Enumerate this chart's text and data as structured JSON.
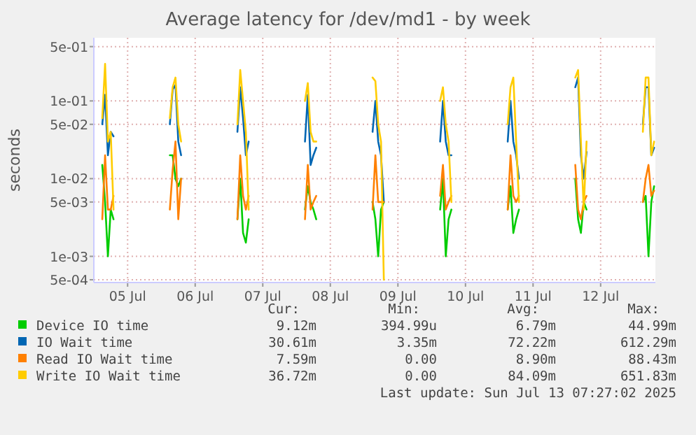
{
  "chart_data": {
    "type": "line",
    "title": "Average latency for /dev/md1 - by week",
    "ylabel": "seconds",
    "log": "y",
    "grid": true,
    "legend": "bottom",
    "xlim": [
      "2025-07-05T00:00",
      "2025-07-13T07:27"
    ],
    "xticks": [
      {
        "value": "2025-07-05T12:00",
        "label": "05 Jul"
      },
      {
        "value": "2025-07-06T12:00",
        "label": "06 Jul"
      },
      {
        "value": "2025-07-07T12:00",
        "label": "07 Jul"
      },
      {
        "value": "2025-07-08T12:00",
        "label": "08 Jul"
      },
      {
        "value": "2025-07-09T12:00",
        "label": "09 Jul"
      },
      {
        "value": "2025-07-10T12:00",
        "label": "10 Jul"
      },
      {
        "value": "2025-07-11T12:00",
        "label": "11 Jul"
      },
      {
        "value": "2025-07-12T12:00",
        "label": "12 Jul"
      }
    ],
    "ylim": [
      0.00046,
      0.65
    ],
    "yticks": [
      {
        "value": 0.0005,
        "label": "5e-04"
      },
      {
        "value": 0.001,
        "label": "1e-03"
      },
      {
        "value": 0.005,
        "label": "5e-03"
      },
      {
        "value": 0.01,
        "label": "1e-02"
      },
      {
        "value": 0.05,
        "label": "5e-02"
      },
      {
        "value": 0.1,
        "label": "1e-01"
      },
      {
        "value": 0.5,
        "label": "5e-01"
      }
    ],
    "x": [
      "2025-07-05T03:00",
      "2025-07-05T04:00",
      "2025-07-05T05:00",
      "2025-07-05T06:00",
      "2025-07-05T07:00",
      "2025-07-05T12:00",
      "2025-07-06T03:00",
      "2025-07-06T04:00",
      "2025-07-06T05:00",
      "2025-07-06T06:00",
      "2025-07-06T07:00",
      "2025-07-06T12:00",
      "2025-07-07T03:00",
      "2025-07-07T04:00",
      "2025-07-07T05:00",
      "2025-07-07T06:00",
      "2025-07-07T07:00",
      "2025-07-07T12:00",
      "2025-07-08T03:00",
      "2025-07-08T04:00",
      "2025-07-08T05:00",
      "2025-07-08T06:00",
      "2025-07-08T07:00",
      "2025-07-08T12:00",
      "2025-07-09T03:00",
      "2025-07-09T04:00",
      "2025-07-09T05:00",
      "2025-07-09T06:00",
      "2025-07-09T07:00",
      "2025-07-09T12:00",
      "2025-07-10T03:00",
      "2025-07-10T04:00",
      "2025-07-10T05:00",
      "2025-07-10T06:00",
      "2025-07-10T07:00",
      "2025-07-10T12:00",
      "2025-07-11T03:00",
      "2025-07-11T04:00",
      "2025-07-11T05:00",
      "2025-07-11T06:00",
      "2025-07-11T07:00",
      "2025-07-11T12:00",
      "2025-07-12T03:00",
      "2025-07-12T04:00",
      "2025-07-12T05:00",
      "2025-07-12T06:00",
      "2025-07-12T07:00",
      "2025-07-12T12:00",
      "2025-07-13T03:00",
      "2025-07-13T04:00",
      "2025-07-13T05:00",
      "2025-07-13T06:00",
      "2025-07-13T07:00"
    ],
    "series": [
      {
        "name": "Device IO time",
        "color": "#00cc00",
        "values": [
          0.015,
          0.005,
          0.001,
          0.004,
          0.003,
          null,
          0.02,
          0.02,
          0.01,
          0.008,
          0.01,
          null,
          0.003,
          0.01,
          0.002,
          0.0015,
          0.003,
          null,
          0.004,
          0.008,
          0.005,
          0.004,
          0.003,
          null,
          0.005,
          0.003,
          0.001,
          0.004,
          0.005,
          null,
          0.004,
          0.01,
          0.001,
          0.003,
          0.004,
          null,
          0.004,
          0.008,
          0.002,
          0.003,
          0.004,
          null,
          0.01,
          0.003,
          0.002,
          0.005,
          0.004,
          null,
          0.005,
          0.006,
          0.001,
          0.005,
          0.008
        ]
      },
      {
        "name": "IO Wait time",
        "color": "#0066b3",
        "values": [
          0.05,
          0.12,
          0.02,
          0.04,
          0.035,
          null,
          0.05,
          0.14,
          0.16,
          0.03,
          0.02,
          null,
          0.04,
          0.15,
          0.06,
          0.02,
          0.03,
          null,
          0.03,
          0.12,
          0.015,
          0.02,
          0.025,
          null,
          0.04,
          0.1,
          0.03,
          0.02,
          0.005,
          null,
          0.03,
          0.1,
          0.03,
          0.02,
          0.02,
          null,
          0.03,
          0.1,
          0.03,
          0.02,
          0.01,
          null,
          0.15,
          0.2,
          0.02,
          0.01,
          0.022,
          null,
          0.05,
          0.15,
          0.15,
          0.02,
          0.025
        ]
      },
      {
        "name": "Read IO Wait time",
        "color": "#ff8000",
        "values": [
          0.003,
          0.02,
          0.004,
          0.004,
          0.006,
          null,
          0.004,
          0.013,
          0.03,
          0.003,
          0.01,
          null,
          0.003,
          0.02,
          0.006,
          0.004,
          0.006,
          null,
          0.003,
          0.015,
          0.004,
          0.005,
          0.006,
          null,
          0.004,
          0.02,
          0.005,
          0.005,
          0.005,
          null,
          0.006,
          0.015,
          0.004,
          0.005,
          0.006,
          null,
          0.004,
          0.02,
          0.006,
          0.005,
          0.006,
          null,
          0.015,
          0.004,
          0.003,
          0.005,
          0.006,
          null,
          0.005,
          0.01,
          0.015,
          0.006,
          0.007
        ]
      },
      {
        "name": "Write IO Wait time",
        "color": "#ffcc00",
        "values": [
          0.06,
          0.3,
          0.03,
          0.04,
          0.004,
          null,
          0.06,
          0.15,
          0.2,
          0.05,
          0.03,
          null,
          0.05,
          0.25,
          0.1,
          0.04,
          0.004,
          null,
          0.1,
          0.17,
          0.04,
          0.03,
          0.03,
          null,
          0.2,
          0.18,
          0.05,
          0.03,
          0.0005,
          null,
          0.1,
          0.15,
          0.05,
          0.03,
          0.005,
          null,
          0.05,
          0.15,
          0.2,
          0.03,
          0.005,
          null,
          0.2,
          0.25,
          0.03,
          0.004,
          0.03,
          null,
          0.04,
          0.2,
          0.2,
          0.02,
          0.03
        ]
      }
    ],
    "annotations": [
      "Cur:",
      "Min:",
      "Avg:",
      "Max:",
      "9.12m",
      "394.99u",
      "6.79m",
      "44.99m",
      "30.61m",
      "3.35m",
      "72.22m",
      "612.29m",
      "7.59m",
      "0.00",
      "8.90m",
      "88.43m",
      "36.72m",
      "0.00",
      "84.09m",
      "651.83m",
      "Last update: Sun Jul 13 07:27:02 2025"
    ]
  }
}
